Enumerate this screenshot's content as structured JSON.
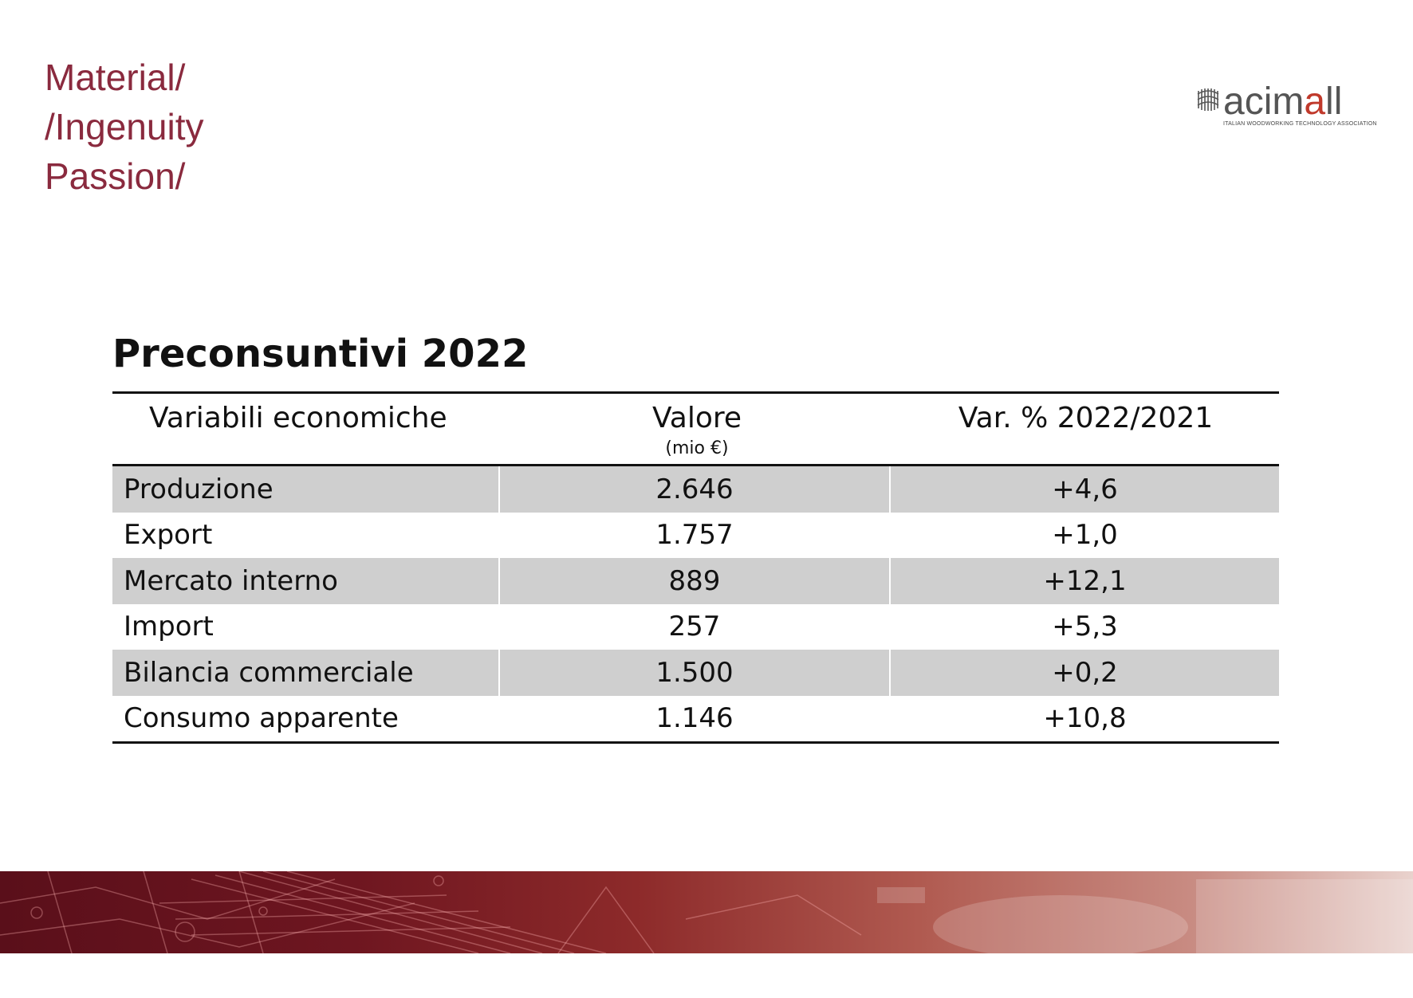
{
  "tagline": [
    "Material/",
    "/Ingenuity",
    "Passion/"
  ],
  "logo": {
    "word_main": "acim",
    "word_accent": "a",
    "word_end": "ll",
    "subtitle": "ITALIAN WOODWORKING TECHNOLOGY ASSOCIATION"
  },
  "title": "Preconsuntivi 2022",
  "table": {
    "headers": {
      "variable": "Variabili economiche",
      "value": "Valore",
      "value_unit": "(mio €)",
      "change": "Var. % 2022/2021"
    },
    "rows": [
      {
        "label": "Produzione",
        "value": "2.646",
        "change": "+4,6"
      },
      {
        "label": "Export",
        "value": "1.757",
        "change": "+1,0"
      },
      {
        "label": "Mercato interno",
        "value": "889",
        "change": "+12,1"
      },
      {
        "label": "Import",
        "value": "257",
        "change": "+5,3"
      },
      {
        "label": "Bilancia commerciale",
        "value": "1.500",
        "change": "+0,2"
      },
      {
        "label": "Consumo apparente",
        "value": "1.146",
        "change": "+10,8"
      }
    ]
  },
  "colors": {
    "tagline": "#8a2a3e",
    "shaded_row": "#cfcfcf",
    "logo_accent": "#c0392b"
  }
}
